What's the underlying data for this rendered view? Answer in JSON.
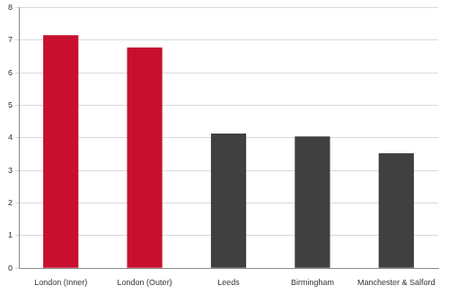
{
  "chart_data": {
    "type": "bar",
    "categories": [
      "London (Inner)",
      "London (Outer)",
      "Leeds",
      "Birmingham",
      "Manchester & Salford"
    ],
    "values": [
      7.15,
      6.77,
      4.13,
      4.04,
      3.53
    ],
    "colors": [
      "#c8102e",
      "#c8102e",
      "#404040",
      "#404040",
      "#404040"
    ],
    "ylim": [
      0,
      8
    ],
    "yticks": [
      0,
      1,
      2,
      3,
      4,
      5,
      6,
      7,
      8
    ],
    "grid": true
  }
}
